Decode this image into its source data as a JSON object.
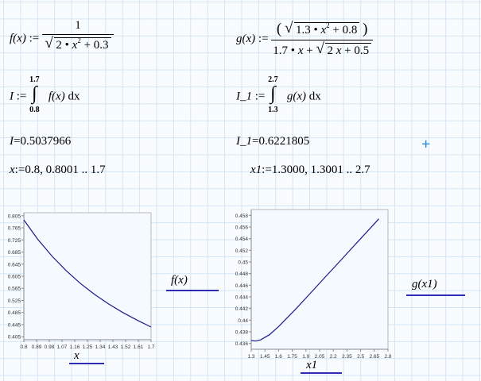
{
  "definitions": {
    "f": {
      "lhs": "f(x)",
      "assign": ":=",
      "num": "1",
      "den_coef": "2",
      "dot": "•",
      "var": "x",
      "power": "2",
      "den_plus": "+ 0.3"
    },
    "g": {
      "lhs": "g(x)",
      "assign": ":=",
      "num_left_paren": "(",
      "num_coef": "1.3",
      "dot": "•",
      "var": "x",
      "power": "2",
      "num_plus": "+ 0.8",
      "num_right_paren": ")",
      "den_coef": "1.7",
      "den_var": "x",
      "den_plus": "+",
      "den_root_coef": "2",
      "den_root_var": "x",
      "den_root_plus": "+ 0.5"
    }
  },
  "integrals": {
    "I": {
      "lhs": "I",
      "assign": ":=",
      "upper": "1.7",
      "lower": "0.8",
      "integrand": "f(x)",
      "dx": "dx"
    },
    "I_1": {
      "lhs": "I_1",
      "assign": ":=",
      "upper": "2.7",
      "lower": "1.3",
      "integrand": "g(x)",
      "dx": "dx"
    }
  },
  "results": {
    "I": {
      "lhs": "I",
      "eq": "=",
      "value": "0.5037966"
    },
    "I_1": {
      "lhs": "I_1",
      "eq": "=",
      "value": "0.6221805"
    }
  },
  "ranges": {
    "x": {
      "lhs": "x",
      "assign": ":=",
      "value": "0.8, 0.8001 .. 1.7"
    },
    "x1": {
      "lhs": "x1",
      "assign": ":=",
      "value": "1.3000, 1.3001 .. 2.7"
    }
  },
  "plots": {
    "left": {
      "y_label": "f(x)",
      "x_label": "x"
    },
    "right": {
      "y_label": "g(x1)",
      "x_label": "x1"
    }
  },
  "colors": {
    "curve": "#1a1a8c",
    "trace_line": "#2b2bb6",
    "cursor": "#2a8ce0"
  },
  "chart_data": [
    {
      "type": "line",
      "xlabel": "x",
      "ylabel": "f(x)",
      "x_ticks": [
        "0.8",
        "0.89",
        "0.98",
        "1.07",
        "1.16",
        "1.25",
        "1.34",
        "1.43",
        "1.52",
        "1.61",
        "1.7"
      ],
      "y_ticks": [
        "0.405",
        "0.445",
        "0.485",
        "0.525",
        "0.565",
        "0.605",
        "0.645",
        "0.685",
        "0.725",
        "0.765",
        "0.805"
      ],
      "xlim": [
        0.8,
        1.7
      ],
      "ylim": [
        0.395,
        0.815
      ],
      "series": [
        {
          "x": [
            0.8,
            0.9,
            1.0,
            1.1,
            1.2,
            1.3,
            1.4,
            1.5,
            1.6,
            1.7
          ],
          "values": [
            0.791,
            0.726,
            0.671,
            0.623,
            0.581,
            0.545,
            0.513,
            0.485,
            0.46,
            0.437
          ]
        }
      ]
    },
    {
      "type": "line",
      "xlabel": "x1",
      "ylabel": "g(x1)",
      "x_ticks": [
        "1.3",
        "1.45",
        "1.6",
        "1.75",
        "1.9",
        "2.05",
        "2.2",
        "2.35",
        "2.5",
        "2.65",
        "2.8"
      ],
      "y_ticks": [
        "0.436",
        "0.438",
        "0.44",
        "0.442",
        "0.444",
        "0.446",
        "0.448",
        "0.45",
        "0.452",
        "0.454",
        "0.456",
        "0.458"
      ],
      "xlim": [
        1.3,
        2.8
      ],
      "ylim": [
        0.435,
        0.459
      ],
      "series": [
        {
          "x": [
            1.3,
            1.35,
            1.4,
            1.5,
            1.6,
            1.7,
            1.8,
            1.9,
            2.0,
            2.1,
            2.2,
            2.3,
            2.4,
            2.5,
            2.6,
            2.7
          ],
          "values": [
            0.4365,
            0.4364,
            0.4366,
            0.4375,
            0.4389,
            0.4405,
            0.4421,
            0.4438,
            0.4455,
            0.4472,
            0.4489,
            0.4506,
            0.4523,
            0.454,
            0.4557,
            0.4574
          ]
        }
      ]
    }
  ]
}
